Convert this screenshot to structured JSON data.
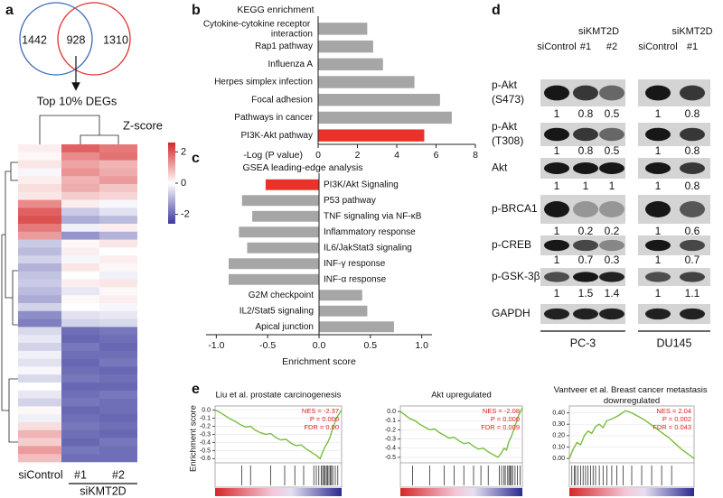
{
  "panel_labels": [
    "a",
    "b",
    "c",
    "d",
    "e"
  ],
  "venn": {
    "counts": [
      1442,
      928,
      1310
    ],
    "caption": "Top 10% DEGs",
    "colors": [
      "#3b6bb5",
      "#e03030"
    ]
  },
  "heatmap": {
    "title": "Z-score",
    "columns": [
      "siControl",
      "#1",
      "#2"
    ],
    "group": "siKMT2D",
    "zlim": [
      -2.6,
      2.6
    ],
    "zticks": [
      2,
      0,
      -2
    ],
    "values": [
      [
        0.2,
        1.9,
        1.6
      ],
      [
        0.1,
        1.4,
        1.7
      ],
      [
        0.3,
        1.1,
        0.9
      ],
      [
        -0.1,
        1.3,
        1.0
      ],
      [
        0.2,
        0.9,
        1.2
      ],
      [
        0.4,
        1.0,
        0.7
      ],
      [
        0.3,
        0.6,
        0.5
      ],
      [
        1.4,
        0.2,
        -0.1
      ],
      [
        1.9,
        -0.7,
        -0.4
      ],
      [
        2.1,
        -1.1,
        -0.9
      ],
      [
        1.6,
        -0.2,
        0.2
      ],
      [
        1.2,
        -1.4,
        -1.0
      ],
      [
        -0.7,
        0.1,
        0.3
      ],
      [
        -0.9,
        0.2,
        0.0
      ],
      [
        -0.6,
        -0.1,
        0.2
      ],
      [
        -1.0,
        0.3,
        0.1
      ],
      [
        -0.8,
        0.0,
        -0.2
      ],
      [
        -0.7,
        0.2,
        0.3
      ],
      [
        -0.9,
        -0.3,
        0.1
      ],
      [
        -1.1,
        0.1,
        0.2
      ],
      [
        -0.6,
        0.0,
        -0.1
      ],
      [
        -1.5,
        -0.4,
        -0.3
      ],
      [
        -1.7,
        -0.6,
        -0.5
      ],
      [
        -0.5,
        -1.9,
        -1.8
      ],
      [
        -0.3,
        -2.0,
        -1.9
      ],
      [
        -0.6,
        -1.8,
        -2.0
      ],
      [
        -0.2,
        -1.9,
        -1.9
      ],
      [
        -0.4,
        -2.0,
        -1.8
      ],
      [
        -0.1,
        -1.9,
        -2.0
      ],
      [
        -0.5,
        -1.8,
        -1.9
      ],
      [
        0.0,
        -2.0,
        -2.0
      ],
      [
        -0.3,
        -1.9,
        -1.8
      ],
      [
        -0.6,
        -1.8,
        -1.9
      ],
      [
        0.1,
        -2.0,
        -1.9
      ],
      [
        -0.2,
        -1.9,
        -2.0
      ],
      [
        0.4,
        -1.8,
        -1.9
      ],
      [
        0.9,
        -1.9,
        -2.0
      ],
      [
        0.6,
        -2.0,
        -1.8
      ],
      [
        1.2,
        -1.8,
        -1.9
      ],
      [
        0.8,
        -1.9,
        -1.9
      ]
    ]
  },
  "chart_data": [
    {
      "type": "bar",
      "orientation": "horizontal",
      "title": "KEGG enrichment",
      "categories": [
        "Cytokine-cytokine receptor interaction",
        "Rap1 pathway",
        "Influenza A",
        "Herpes simplex infection",
        "Focal adhesion",
        "Pathways in cancer",
        "PI3K-Akt pathway"
      ],
      "values": [
        2.5,
        2.8,
        3.3,
        4.9,
        6.2,
        6.8,
        5.4
      ],
      "colors": [
        "#a6a6a6",
        "#a6a6a6",
        "#a6a6a6",
        "#a6a6a6",
        "#a6a6a6",
        "#a6a6a6",
        "#e8322a"
      ],
      "xlim": [
        0,
        8
      ],
      "xticks": [
        0,
        2,
        4,
        6,
        8
      ],
      "x_label": "-Log (P value)"
    },
    {
      "type": "bar",
      "orientation": "horizontal",
      "title": "GSEA leading-edge analysis",
      "categories": [
        "PI3K/Akt Signaling",
        "P53 pathway",
        "TNF signaling via NF-κB",
        "Inflammatory response",
        "IL6/JakStat3 signaling",
        "INF-γ response",
        "INF-α response",
        "G2M checkpoint",
        "IL2/Stat5 signaling",
        "Apical junction"
      ],
      "values": [
        -0.52,
        -0.75,
        -0.65,
        -0.78,
        -0.7,
        -0.88,
        -0.88,
        0.42,
        0.47,
        0.73
      ],
      "colors": [
        "#e8322a",
        "#a6a6a6",
        "#a6a6a6",
        "#a6a6a6",
        "#a6a6a6",
        "#a6a6a6",
        "#a6a6a6",
        "#a6a6a6",
        "#a6a6a6",
        "#a6a6a6"
      ],
      "xlim": [
        -1.1,
        1.1
      ],
      "xticks": [
        {
          "value": -1,
          "label": "-1.0"
        },
        -0.5,
        {
          "value": 0,
          "label": "0.0"
        },
        0.5,
        {
          "value": 1,
          "label": "1.0"
        }
      ],
      "x_label": "Enrichment score"
    },
    {
      "type": "line",
      "title": "Liu et al. prostate carcinogenesis",
      "y_label": "Enrichment score",
      "color": "#78be3c",
      "x": [
        0,
        4,
        8,
        12,
        16,
        20,
        24,
        28,
        32,
        36,
        40,
        44,
        48,
        52,
        56,
        60,
        64,
        68,
        72,
        76,
        80,
        83,
        85,
        87,
        89,
        91,
        93,
        95,
        97,
        100
      ],
      "values": [
        0,
        -0.03,
        -0.07,
        -0.11,
        -0.14,
        -0.18,
        -0.21,
        -0.2,
        -0.25,
        -0.28,
        -0.3,
        -0.29,
        -0.34,
        -0.37,
        -0.36,
        -0.41,
        -0.44,
        -0.43,
        -0.48,
        -0.52,
        -0.56,
        -0.6,
        -0.52,
        -0.45,
        -0.4,
        -0.33,
        -0.22,
        -0.14,
        -0.07,
        0
      ],
      "hits": [
        21,
        28,
        44,
        55,
        63,
        70,
        78,
        80,
        82,
        84,
        85,
        86,
        87,
        88,
        89,
        90,
        91,
        92,
        93,
        95,
        97
      ],
      "xlim": [
        0,
        100
      ],
      "ylim": [
        -0.64,
        0.05
      ],
      "yticks": [
        {
          "value": 0,
          "label": "0.0"
        },
        -0.1,
        -0.2,
        -0.3,
        -0.4,
        -0.5,
        -0.6
      ],
      "annotations": [
        "NES = -2.37",
        "P = 0.000",
        "FDR = 0.00"
      ],
      "annotation_color": "#e02020"
    },
    {
      "type": "line",
      "title": "Akt upregulated",
      "color": "#78be3c",
      "x": [
        0,
        4,
        8,
        12,
        16,
        20,
        24,
        28,
        32,
        36,
        40,
        44,
        48,
        52,
        56,
        60,
        64,
        68,
        72,
        76,
        80,
        83,
        85,
        87,
        89,
        91,
        93,
        95,
        97,
        100
      ],
      "values": [
        0,
        -0.04,
        -0.08,
        -0.1,
        -0.14,
        -0.17,
        -0.2,
        -0.19,
        -0.23,
        -0.26,
        -0.29,
        -0.28,
        -0.32,
        -0.35,
        -0.34,
        -0.38,
        -0.41,
        -0.4,
        -0.44,
        -0.47,
        -0.5,
        -0.45,
        -0.4,
        -0.42,
        -0.33,
        -0.27,
        -0.2,
        -0.12,
        -0.04,
        0.04
      ],
      "hits": [
        10,
        24,
        36,
        44,
        52,
        60,
        66,
        72,
        81,
        83,
        85,
        86,
        88,
        89,
        90,
        91,
        92,
        94,
        96,
        98
      ],
      "xlim": [
        0,
        100
      ],
      "ylim": [
        -0.55,
        0.06
      ],
      "yticks": [
        {
          "value": 0,
          "label": "0.0"
        },
        -0.1,
        -0.2,
        -0.3,
        -0.4,
        -0.5
      ],
      "annotations": [
        "NES = -2.08",
        "P = 0.000",
        "FDR = 0.009"
      ],
      "annotation_color": "#e02020"
    },
    {
      "type": "line",
      "title": "Vantveer et al. Breast cancer metastasis downregulated",
      "color": "#78be3c",
      "x": [
        0,
        3,
        6,
        9,
        12,
        15,
        18,
        21,
        24,
        27,
        30,
        35,
        40,
        45,
        50,
        55,
        60,
        65,
        70,
        75,
        80,
        85,
        90,
        95,
        100
      ],
      "values": [
        0,
        0.08,
        0.14,
        0.12,
        0.2,
        0.24,
        0.22,
        0.28,
        0.3,
        0.27,
        0.33,
        0.35,
        0.38,
        0.42,
        0.4,
        0.37,
        0.34,
        0.3,
        0.26,
        0.22,
        0.18,
        0.13,
        0.08,
        0.04,
        0
      ],
      "hits": [
        2,
        4,
        5,
        7,
        9,
        11,
        13,
        15,
        17,
        19,
        21,
        24,
        27,
        30,
        34,
        38,
        43,
        50,
        58,
        66,
        74,
        82
      ],
      "xlim": [
        0,
        100
      ],
      "ylim": [
        -0.03,
        0.46
      ],
      "yticks": [
        {
          "value": 0,
          "label": "0.00"
        },
        {
          "value": 0.1,
          "label": "0.10"
        },
        {
          "value": 0.2,
          "label": "0.20"
        },
        {
          "value": 0.3,
          "label": "0.30"
        },
        {
          "value": 0.4,
          "label": "0.40"
        }
      ],
      "annotations": [
        "NES = 2.04",
        "P = 0.002",
        "FDR = 0.043"
      ],
      "annotation_color": "#e02020"
    }
  ],
  "blot": {
    "cell_lines": [
      {
        "name": "PC-3",
        "lanes": [
          "siControl",
          "#1",
          "#2"
        ],
        "group": "siKMT2D"
      },
      {
        "name": "DU145",
        "lanes": [
          "siControl",
          "#1"
        ],
        "group": "siKMT2D"
      }
    ],
    "rows": [
      {
        "label": "p-Akt (S473)",
        "values": [
          1,
          0.8,
          0.5,
          1,
          0.8
        ]
      },
      {
        "label": "p-Akt (T308)",
        "values": [
          1,
          0.8,
          0.5,
          1,
          0.8
        ]
      },
      {
        "label": "Akt",
        "values": [
          1,
          1,
          1,
          1,
          0.8
        ]
      },
      {
        "label": "p-BRCA1",
        "values": [
          1,
          0.2,
          0.2,
          1,
          0.6
        ]
      },
      {
        "label": "p-CREB",
        "values": [
          1,
          0.7,
          0.3,
          1,
          0.7
        ]
      },
      {
        "label": "p-GSK-3β",
        "values": [
          1,
          1.5,
          1.4,
          1,
          1.1
        ]
      },
      {
        "label": "GAPDH"
      }
    ]
  }
}
